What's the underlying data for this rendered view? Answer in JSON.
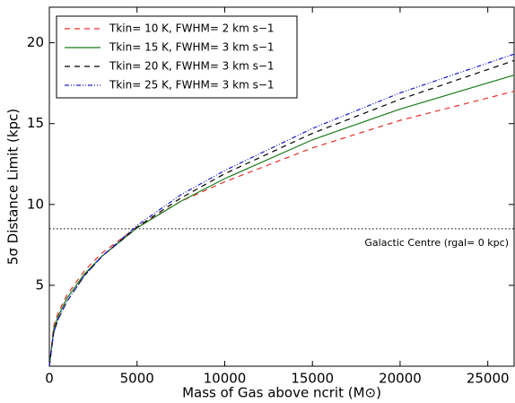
{
  "chart_data": {
    "type": "line",
    "x_label": "Mass of Gas above ncrit (M⊙)",
    "y_label": "5σ Distance Limit (kpc)",
    "x": [
      0,
      250,
      500,
      1000,
      2000,
      3000,
      5000,
      7500,
      10000,
      15000,
      20000,
      26500
    ],
    "series": [
      {
        "name": "Tkin= 10 K, FWHM= 2 km s−1",
        "color": "#e8302a",
        "dash": "6,5",
        "values": [
          0,
          2.5,
          3.3,
          4.4,
          5.9,
          7.0,
          8.6,
          10.2,
          11.4,
          13.5,
          15.2,
          17.0
        ]
      },
      {
        "name": "Tkin= 15 K, FWHM= 3 km s−1",
        "color": "#1a7a1a",
        "dash": "none",
        "values": [
          0,
          2.3,
          3.1,
          4.2,
          5.7,
          6.8,
          8.55,
          10.2,
          11.6,
          14.0,
          15.9,
          18.0
        ]
      },
      {
        "name": "Tkin= 20 K, FWHM= 3 km s−1",
        "color": "#000000",
        "dash": "6,5",
        "values": [
          0,
          2.1,
          2.9,
          4.0,
          5.6,
          6.8,
          8.6,
          10.4,
          11.9,
          14.4,
          16.5,
          18.9
        ]
      },
      {
        "name": "Tkin= 25 K, FWHM= 3 km s−1",
        "color": "#1a1acc",
        "dash": "5,2,1,2,1,2",
        "values": [
          0,
          2.1,
          2.9,
          4.0,
          5.6,
          6.8,
          8.7,
          10.6,
          12.1,
          14.7,
          16.9,
          19.3
        ]
      }
    ],
    "hline": 8.5,
    "annotation": "Galactic Centre (rgal= 0 kpc)",
    "xlim": [
      0,
      26500
    ],
    "xticks": [
      0,
      5000,
      10000,
      15000,
      20000,
      25000
    ],
    "ylim": [
      0,
      22.2
    ],
    "yticks": [
      5,
      10,
      15,
      20
    ],
    "legend": "upper left"
  }
}
